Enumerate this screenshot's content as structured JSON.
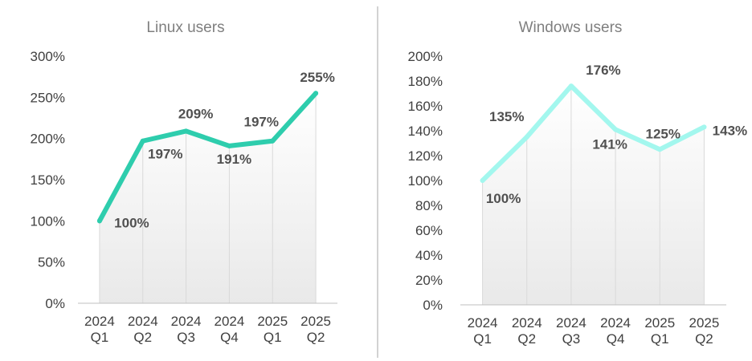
{
  "chart_data": [
    {
      "type": "line",
      "title": "Linux users",
      "categories": [
        [
          "2024",
          "Q1"
        ],
        [
          "2024",
          "Q2"
        ],
        [
          "2024",
          "Q3"
        ],
        [
          "2024",
          "Q4"
        ],
        [
          "2025",
          "Q1"
        ],
        [
          "2025",
          "Q2"
        ]
      ],
      "series": [
        {
          "values": [
            100,
            197,
            209,
            191,
            197,
            255
          ]
        }
      ],
      "data_labels": [
        "100%",
        "197%",
        "209%",
        "191%",
        "197%",
        "255%"
      ],
      "ylim": [
        0,
        300
      ],
      "yticks": [
        "0%",
        "50%",
        "100%",
        "150%",
        "200%",
        "250%",
        "300%"
      ],
      "xlabel": "",
      "ylabel": "",
      "line_color": "#2ecdad",
      "grid": false,
      "legend": "none"
    },
    {
      "type": "line",
      "title": "Windows users",
      "categories": [
        [
          "2024",
          "Q1"
        ],
        [
          "2024",
          "Q2"
        ],
        [
          "2024",
          "Q3"
        ],
        [
          "2024",
          "Q4"
        ],
        [
          "2025",
          "Q1"
        ],
        [
          "2025",
          "Q2"
        ]
      ],
      "series": [
        {
          "values": [
            100,
            135,
            176,
            141,
            125,
            143
          ]
        }
      ],
      "data_labels": [
        "100%",
        "135%",
        "176%",
        "141%",
        "125%",
        "143%"
      ],
      "ylim": [
        0,
        200
      ],
      "yticks": [
        "0%",
        "20%",
        "40%",
        "60%",
        "80%",
        "100%",
        "120%",
        "140%",
        "160%",
        "180%",
        "200%"
      ],
      "xlabel": "",
      "ylabel": "",
      "line_color": "#a3f7ee",
      "grid": false,
      "legend": "none"
    }
  ]
}
